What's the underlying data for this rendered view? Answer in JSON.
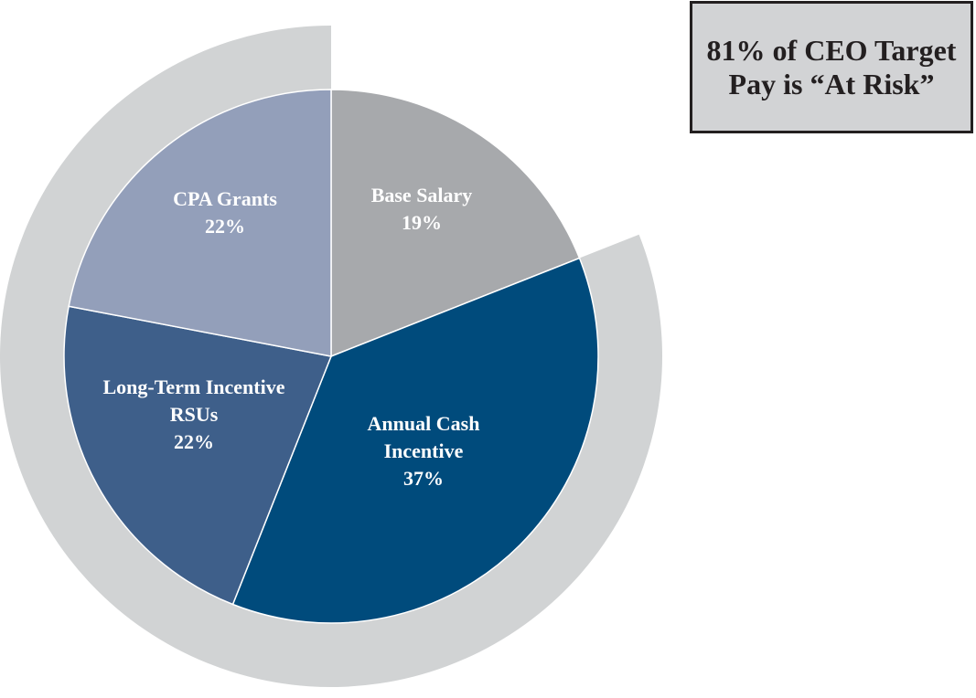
{
  "callout": {
    "text": "81% of CEO Target Pay is “At Risk”"
  },
  "chart_data": {
    "type": "pie",
    "slices": [
      {
        "label_lines": [
          "Base Salary"
        ],
        "value": 19,
        "value_label": "19%",
        "color": "#a7a9ac"
      },
      {
        "label_lines": [
          "Annual Cash",
          "Incentive"
        ],
        "value": 37,
        "value_label": "37%",
        "color": "#004b7c"
      },
      {
        "label_lines": [
          "Long-Term Incentive",
          "RSUs"
        ],
        "value": 22,
        "value_label": "22%",
        "color": "#3e5f8a"
      },
      {
        "label_lines": [
          "CPA Grants"
        ],
        "value": 22,
        "value_label": "22%",
        "color": "#939fba"
      }
    ],
    "at_risk_ring": {
      "value": 81,
      "color": "#d1d3d4"
    }
  }
}
